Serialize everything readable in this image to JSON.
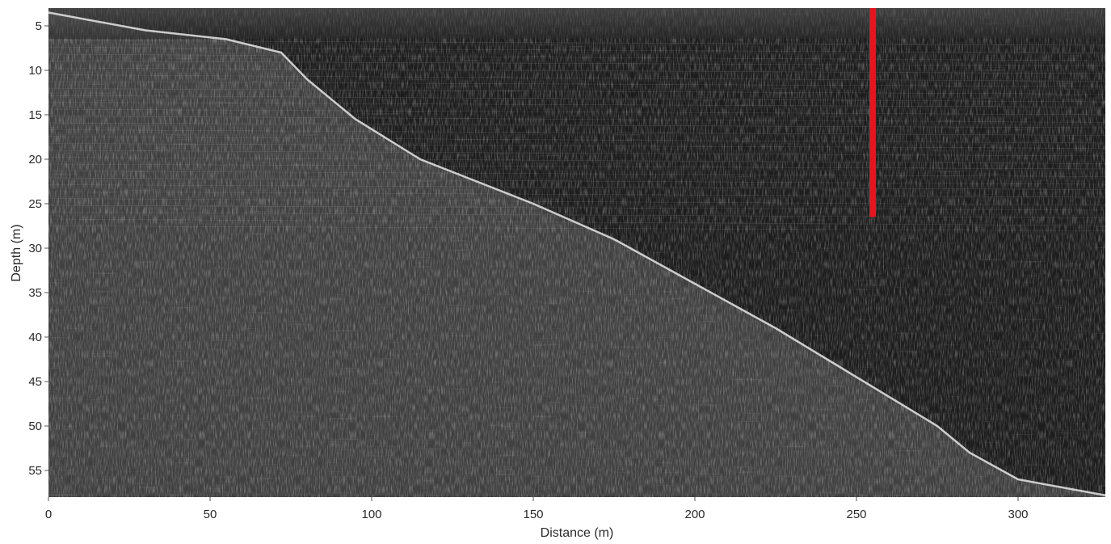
{
  "chart_data": {
    "type": "heatmap",
    "title": "",
    "xlabel": "Distance (m)",
    "ylabel": "Depth (m)",
    "xlim": [
      0,
      327
    ],
    "ylim": [
      3,
      58
    ],
    "y_inverted": true,
    "colormap": "grayscale",
    "grid": false,
    "x_ticks": [
      0,
      50,
      100,
      150,
      200,
      250,
      300
    ],
    "y_ticks": [
      5,
      10,
      15,
      20,
      25,
      30,
      35,
      40,
      45,
      50,
      55
    ],
    "boundary_profile": [
      {
        "x": 0,
        "depth": 3.5
      },
      {
        "x": 30,
        "depth": 5.5
      },
      {
        "x": 55,
        "depth": 6.5
      },
      {
        "x": 72,
        "depth": 8.0
      },
      {
        "x": 80,
        "depth": 11.0
      },
      {
        "x": 95,
        "depth": 15.5
      },
      {
        "x": 115,
        "depth": 20.0
      },
      {
        "x": 150,
        "depth": 25.0
      },
      {
        "x": 175,
        "depth": 29.0
      },
      {
        "x": 200,
        "depth": 34.0
      },
      {
        "x": 225,
        "depth": 39.0
      },
      {
        "x": 250,
        "depth": 44.5
      },
      {
        "x": 275,
        "depth": 50.0
      },
      {
        "x": 285,
        "depth": 53.0
      },
      {
        "x": 300,
        "depth": 56.0
      },
      {
        "x": 327,
        "depth": 57.8
      }
    ],
    "annotations": [
      {
        "type": "vertical_line",
        "x": 255,
        "depth_from": 3,
        "depth_to": 26.5,
        "color": "#e8141c"
      }
    ]
  }
}
